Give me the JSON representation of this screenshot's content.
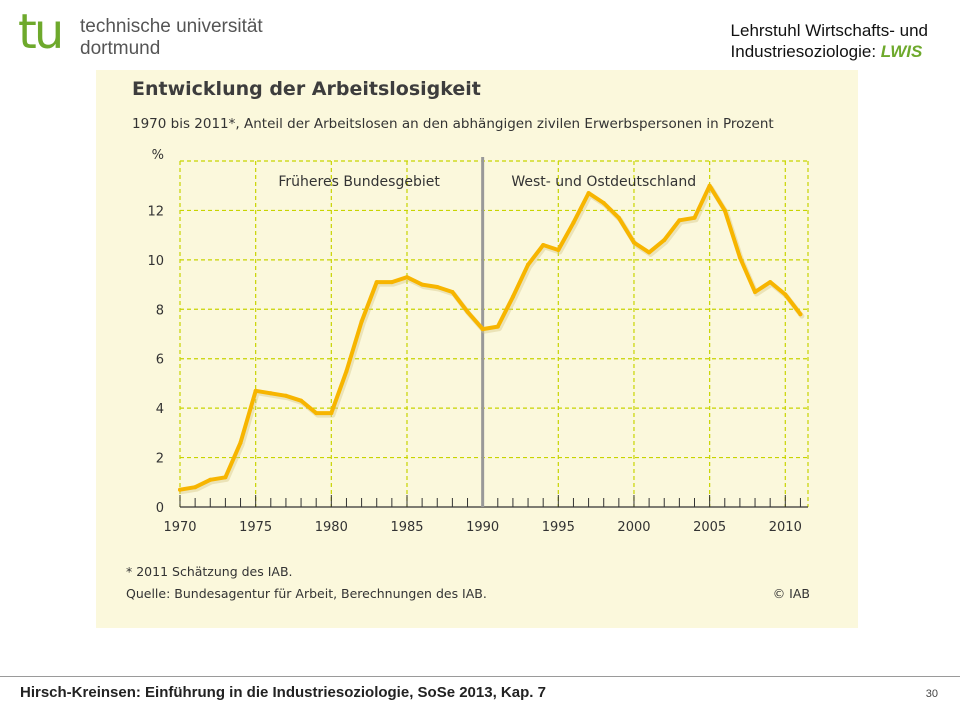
{
  "header": {
    "logo_mark": "tu",
    "logo_line1": "technische universität",
    "logo_line2": "dortmund",
    "chair_line1": "Lehrstuhl Wirtschafts- und",
    "chair_line2_prefix": "Industriesoziologie: ",
    "chair_line2_accent": "LWIS"
  },
  "chart_data": {
    "type": "line",
    "title": "Entwicklung der Arbeitslosigkeit",
    "subtitle": "1970 bis 2011*, Anteil der Arbeitslosen an den abhängigen zivilen Erwerbspersonen in Prozent",
    "ylabel": "%",
    "xlabel": "",
    "xlim": [
      1970,
      2011.5
    ],
    "ylim": [
      0,
      14
    ],
    "x_ticks": [
      1970,
      1975,
      1980,
      1985,
      1990,
      1995,
      2000,
      2005,
      2010
    ],
    "y_ticks": [
      0,
      2,
      4,
      6,
      8,
      10,
      12
    ],
    "grid": true,
    "region_divider_x": 1990,
    "regions": [
      "Früheres Bundesgebiet",
      "West- und Ostdeutschland"
    ],
    "line_color": "#f7b500",
    "grid_color": "#c8d400",
    "series": [
      {
        "x": [
          1970,
          1971,
          1972,
          1973,
          1974,
          1975,
          1976,
          1977,
          1978,
          1979,
          1980,
          1981,
          1982,
          1983,
          1984,
          1985,
          1986,
          1987,
          1988,
          1989,
          1990,
          1991,
          1992,
          1993,
          1994,
          1995,
          1996,
          1997,
          1998,
          1999,
          2000,
          2001,
          2002,
          2003,
          2004,
          2005,
          2006,
          2007,
          2008,
          2009,
          2010,
          2011
        ],
        "values": [
          0.7,
          0.8,
          1.1,
          1.2,
          2.6,
          4.7,
          4.6,
          4.5,
          4.3,
          3.8,
          3.8,
          5.5,
          7.5,
          9.1,
          9.1,
          9.3,
          9.0,
          8.9,
          8.7,
          7.9,
          7.2,
          7.3,
          8.5,
          9.8,
          10.6,
          10.4,
          11.5,
          12.7,
          12.3,
          11.7,
          10.7,
          10.3,
          10.8,
          11.6,
          11.7,
          13.0,
          12.0,
          10.1,
          8.7,
          9.1,
          8.6,
          7.8
        ]
      }
    ]
  },
  "notes": {
    "footnote": "* 2011 Schätzung des IAB.",
    "source": "Quelle: Bundesagentur für Arbeit, Berechnungen des IAB.",
    "copyright": "© IAB"
  },
  "footer": {
    "text": "Hirsch-Kreinsen: Einführung in die Industriesoziologie, SoSe 2013, Kap. 7",
    "page_number": "30"
  }
}
